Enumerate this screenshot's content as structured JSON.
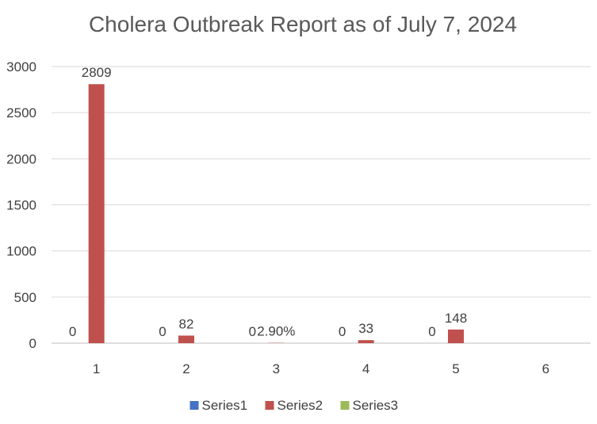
{
  "chart_data": {
    "type": "bar",
    "title": "Cholera Outbreak Report as of July 7, 2024",
    "categories": [
      "1",
      "2",
      "3",
      "4",
      "5",
      "6"
    ],
    "series": [
      {
        "name": "Series1",
        "color": "#4472c4",
        "values": [
          0,
          0,
          0,
          0,
          0,
          null
        ],
        "labels": [
          "0",
          "0",
          "0",
          "0",
          "0",
          ""
        ]
      },
      {
        "name": "Series2",
        "color": "#c0504d",
        "values": [
          2809,
          82,
          2.9,
          33,
          148,
          null
        ],
        "labels": [
          "2809",
          "82",
          "2.90%",
          "33",
          "148",
          ""
        ]
      },
      {
        "name": "Series3",
        "color": "#9bbb59",
        "values": [
          null,
          null,
          null,
          null,
          null,
          null
        ],
        "labels": [
          "",
          "",
          "",
          "",
          "",
          ""
        ]
      }
    ],
    "y_ticks": [
      "0",
      "500",
      "1000",
      "1500",
      "2000",
      "2500",
      "3000"
    ],
    "ylim": [
      0,
      3000
    ],
    "grid": true,
    "legend_position": "bottom"
  }
}
